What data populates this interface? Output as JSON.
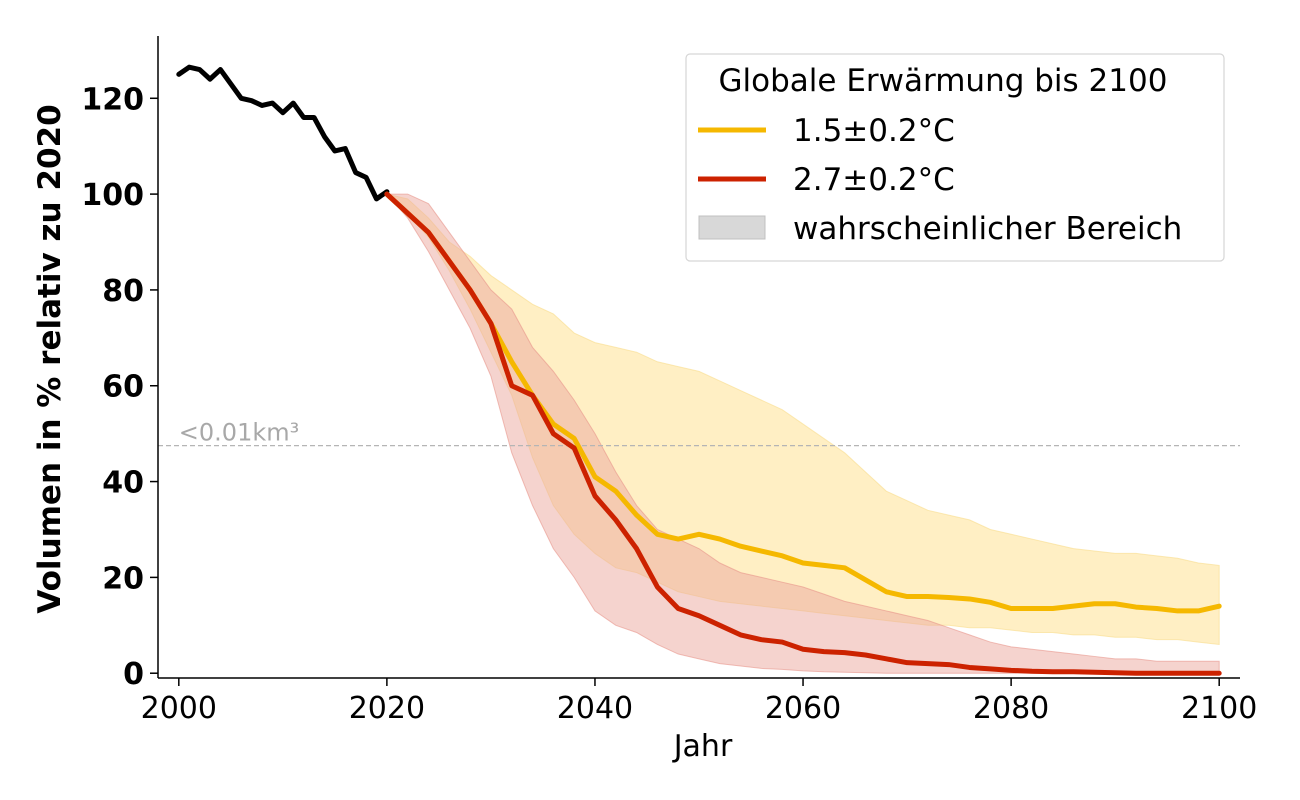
{
  "chart_data": {
    "type": "line",
    "xlabel": "Jahr",
    "ylabel": "Volumen in % relativ zu 2020",
    "xlim": [
      1998,
      2102
    ],
    "ylim": [
      -1,
      133
    ],
    "x_ticks": [
      2000,
      2020,
      2040,
      2060,
      2080,
      2100
    ],
    "y_ticks": [
      0,
      20,
      40,
      60,
      80,
      100,
      120
    ],
    "grid": false,
    "legend": {
      "title": "Globale Erwärmung bis 2100",
      "placement": "top-right",
      "entries": [
        "1.5±0.2°C",
        "2.7±0.2°C",
        "wahrscheinlicher Bereich"
      ]
    },
    "reference_line": {
      "y": 47.5,
      "label": "<0.01km³",
      "style": "dashed"
    },
    "colors": {
      "observed": "#000000",
      "scenario_low": "#f5b800",
      "scenario_high": "#cc2200",
      "band_low": "#ffe9b0",
      "band_high": "#eca89e",
      "legend_patch": "#d8d8d8"
    },
    "series": [
      {
        "x": [
          2000,
          2001,
          2002,
          2003,
          2004,
          2005,
          2006,
          2007,
          2008,
          2009,
          2010,
          2011,
          2012,
          2013,
          2014,
          2015,
          2016,
          2017,
          2018,
          2019,
          2020
        ],
        "values": [
          125,
          126.5,
          126,
          124,
          126,
          123,
          120,
          119.5,
          118.5,
          119,
          117,
          119,
          116,
          116,
          112,
          109,
          109.5,
          104.5,
          103.5,
          99,
          100.5
        ]
      },
      {
        "name": "1.5±0.2°C",
        "x": [
          2020,
          2022,
          2024,
          2026,
          2028,
          2030,
          2032,
          2034,
          2036,
          2038,
          2040,
          2042,
          2044,
          2046,
          2048,
          2050,
          2052,
          2054,
          2056,
          2058,
          2060,
          2062,
          2064,
          2066,
          2068,
          2070,
          2072,
          2074,
          2076,
          2078,
          2080,
          2082,
          2084,
          2086,
          2088,
          2090,
          2092,
          2094,
          2096,
          2098,
          2100
        ],
        "values": [
          100,
          96,
          92,
          86,
          80,
          73,
          65,
          58,
          52,
          49,
          41,
          38,
          33,
          29,
          28,
          29,
          28,
          26.5,
          25.5,
          24.5,
          23,
          22.5,
          22,
          19.5,
          17,
          16,
          16,
          15.8,
          15.5,
          14.8,
          13.5,
          13.5,
          13.5,
          14,
          14.5,
          14.5,
          13.8,
          13.5,
          13,
          13,
          14
        ]
      },
      {
        "name": "2.7±0.2°C",
        "x": [
          2020,
          2022,
          2024,
          2026,
          2028,
          2030,
          2032,
          2034,
          2036,
          2038,
          2040,
          2042,
          2044,
          2046,
          2048,
          2050,
          2052,
          2054,
          2056,
          2058,
          2060,
          2062,
          2064,
          2066,
          2068,
          2070,
          2072,
          2074,
          2076,
          2078,
          2080,
          2082,
          2084,
          2086,
          2088,
          2090,
          2092,
          2094,
          2096,
          2098,
          2100
        ],
        "values": [
          100,
          96,
          92,
          86,
          80,
          73,
          60,
          58,
          50,
          47,
          37,
          32,
          26,
          18,
          13.5,
          12,
          10,
          8,
          7,
          6.5,
          5,
          4.5,
          4.3,
          3.8,
          3,
          2.2,
          2,
          1.8,
          1.2,
          0.9,
          0.6,
          0.4,
          0.3,
          0.3,
          0.2,
          0.1,
          0,
          0,
          0,
          0,
          0
        ]
      }
    ],
    "bands": [
      {
        "x": [
          2020,
          2022,
          2024,
          2026,
          2028,
          2030,
          2032,
          2034,
          2036,
          2038,
          2040,
          2042,
          2044,
          2046,
          2048,
          2050,
          2052,
          2054,
          2056,
          2058,
          2060,
          2062,
          2064,
          2066,
          2068,
          2070,
          2072,
          2074,
          2076,
          2078,
          2080,
          2082,
          2084,
          2086,
          2088,
          2090,
          2092,
          2094,
          2096,
          2098,
          2100
        ],
        "upper": [
          100,
          99,
          95,
          90,
          87,
          83,
          80,
          77,
          75,
          71,
          69,
          68,
          67,
          65,
          64,
          63,
          61,
          59,
          57,
          55,
          52,
          49,
          46,
          42,
          38,
          36,
          34,
          33,
          32,
          30,
          29,
          28,
          27,
          26,
          25.5,
          25,
          25,
          24.5,
          24,
          23,
          22.5
        ],
        "lower": [
          100,
          96,
          91,
          84,
          76,
          67,
          58,
          45,
          35,
          29,
          25,
          22,
          21,
          19,
          17,
          16,
          15,
          14.5,
          14,
          13.5,
          13,
          12.5,
          12,
          11.5,
          11,
          10.5,
          10,
          10,
          9.5,
          9.5,
          9,
          8.5,
          8.5,
          8,
          8,
          7.5,
          7.5,
          7,
          7,
          6.5,
          6
        ]
      },
      {
        "x": [
          2020,
          2022,
          2024,
          2026,
          2028,
          2030,
          2032,
          2034,
          2036,
          2038,
          2040,
          2042,
          2044,
          2046,
          2048,
          2050,
          2052,
          2054,
          2056,
          2058,
          2060,
          2062,
          2064,
          2066,
          2068,
          2070,
          2072,
          2074,
          2076,
          2078,
          2080,
          2082,
          2084,
          2086,
          2088,
          2090,
          2092,
          2094,
          2096,
          2098,
          2100
        ],
        "upper": [
          100,
          100,
          98,
          92,
          86,
          80,
          76,
          68,
          63,
          57,
          50,
          42,
          35,
          30,
          28,
          26,
          23,
          21,
          20,
          19,
          18,
          16.5,
          15,
          14,
          13,
          12,
          11,
          9.5,
          8,
          6.5,
          5.5,
          5,
          4.5,
          4,
          3.5,
          3,
          3,
          2.5,
          2.5,
          2.5,
          2.5
        ],
        "lower": [
          100,
          95,
          88,
          80,
          72,
          62,
          46,
          35,
          26,
          20,
          13,
          10,
          8.5,
          6,
          4,
          3,
          2,
          1.5,
          1,
          0.8,
          0.5,
          0.3,
          0.2,
          0.1,
          0,
          0,
          0,
          0,
          0,
          0,
          0,
          0,
          0,
          0,
          0,
          0,
          0,
          0,
          0,
          0,
          0
        ]
      }
    ]
  }
}
